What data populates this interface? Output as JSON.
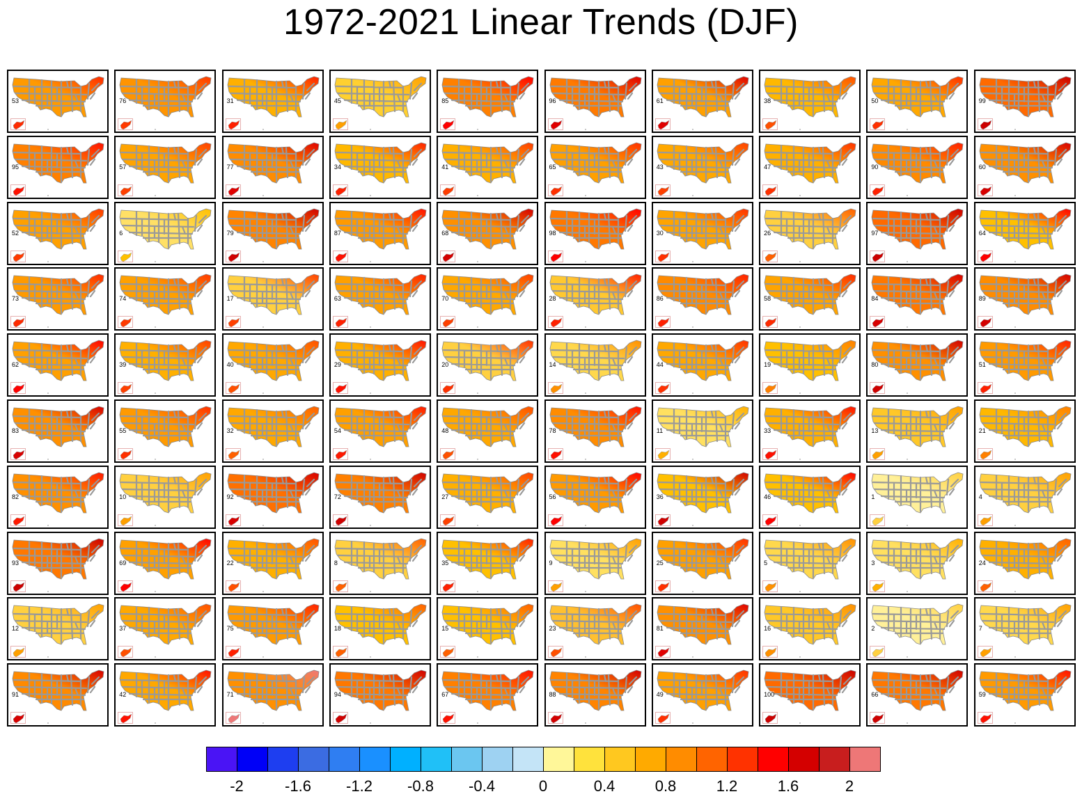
{
  "title": "1972-2021 Linear Trends (DJF)",
  "colorbar": {
    "colors": [
      "#4a14f5",
      "#0000f7",
      "#1e3ef0",
      "#3b6ce2",
      "#2f7ef2",
      "#1a90ff",
      "#00b0ff",
      "#20c0f7",
      "#6bc6f0",
      "#9ed2f2",
      "#c4e4f7",
      "#fff799",
      "#ffe23c",
      "#ffc81f",
      "#ffaa00",
      "#ff8c00",
      "#ff6400",
      "#ff3200",
      "#ff0000",
      "#d40000",
      "#c81e1e",
      "#ee7777"
    ],
    "tick_labels": [
      "-2",
      "-1.6",
      "-1.2",
      "-0.8",
      "-0.4",
      "0",
      "0.4",
      "0.8",
      "1.2",
      "1.6",
      "2"
    ]
  },
  "map_layers": {
    "state_line_color": "#999999",
    "state_line_width_units": "map"
  },
  "panels": [
    {
      "label": "53",
      "c": "#ff9a00",
      "hot": "#ff2a00"
    },
    {
      "label": "76",
      "c": "#ff9400",
      "hot": "#ff3a00"
    },
    {
      "label": "31",
      "c": "#ffb000",
      "hot": "#ff2000"
    },
    {
      "label": "45",
      "c": "#ffd030",
      "hot": "#ffa000"
    },
    {
      "label": "85",
      "c": "#ff8000",
      "hot": "#ff0000"
    },
    {
      "label": "96",
      "c": "#ff7a00",
      "hot": "#e00000"
    },
    {
      "label": "61",
      "c": "#ffa000",
      "hot": "#e00000"
    },
    {
      "label": "38",
      "c": "#ffb800",
      "hot": "#ff5000"
    },
    {
      "label": "50",
      "c": "#ffa800",
      "hot": "#ff3000"
    },
    {
      "label": "99",
      "c": "#ff6a00",
      "hot": "#cc0000"
    },
    {
      "label": "95",
      "c": "#ff8000",
      "hot": "#ff1000"
    },
    {
      "label": "57",
      "c": "#ffa400",
      "hot": "#ff4000"
    },
    {
      "label": "77",
      "c": "#ff8c00",
      "hot": "#e00000"
    },
    {
      "label": "34",
      "c": "#ffb800",
      "hot": "#ff2000"
    },
    {
      "label": "41",
      "c": "#ffb000",
      "hot": "#ff3c00"
    },
    {
      "label": "65",
      "c": "#ffa000",
      "hot": "#ff3000"
    },
    {
      "label": "43",
      "c": "#ffa800",
      "hot": "#ff4000"
    },
    {
      "label": "47",
      "c": "#ffb000",
      "hot": "#ff3000"
    },
    {
      "label": "90",
      "c": "#ff8a00",
      "hot": "#ff2000"
    },
    {
      "label": "60",
      "c": "#ff9000",
      "hot": "#d80000"
    },
    {
      "label": "52",
      "c": "#ffa000",
      "hot": "#ff3a00"
    },
    {
      "label": "6",
      "c": "#ffe066",
      "hot": "#ffc000"
    },
    {
      "label": "79",
      "c": "#ff8400",
      "hot": "#d00000"
    },
    {
      "label": "87",
      "c": "#ff9a00",
      "hot": "#ff1000"
    },
    {
      "label": "68",
      "c": "#ff9000",
      "hot": "#d40000"
    },
    {
      "label": "98",
      "c": "#ff7800",
      "hot": "#ff0000"
    },
    {
      "label": "30",
      "c": "#ffa400",
      "hot": "#ff3000"
    },
    {
      "label": "26",
      "c": "#ffd040",
      "hot": "#ff6000"
    },
    {
      "label": "97",
      "c": "#ff6a00",
      "hot": "#cc0000"
    },
    {
      "label": "64",
      "c": "#ffc000",
      "hot": "#ff0000"
    },
    {
      "label": "73",
      "c": "#ff9a00",
      "hot": "#ff2a00"
    },
    {
      "label": "74",
      "c": "#ffa000",
      "hot": "#ff3a00"
    },
    {
      "label": "17",
      "c": "#ffd040",
      "hot": "#ff4000"
    },
    {
      "label": "63",
      "c": "#ffa000",
      "hot": "#ff2000"
    },
    {
      "label": "70",
      "c": "#ffa800",
      "hot": "#ff4000"
    },
    {
      "label": "28",
      "c": "#ffc830",
      "hot": "#ff2000"
    },
    {
      "label": "86",
      "c": "#ff8a00",
      "hot": "#ff2000"
    },
    {
      "label": "58",
      "c": "#ffa400",
      "hot": "#ff2a00"
    },
    {
      "label": "84",
      "c": "#ff7800",
      "hot": "#d80000"
    },
    {
      "label": "89",
      "c": "#ff8c00",
      "hot": "#d40000"
    },
    {
      "label": "62",
      "c": "#ffa000",
      "hot": "#ff0000"
    },
    {
      "label": "39",
      "c": "#ffb000",
      "hot": "#ff4000"
    },
    {
      "label": "40",
      "c": "#ffa800",
      "hot": "#ff5000"
    },
    {
      "label": "29",
      "c": "#ffb000",
      "hot": "#ff1000"
    },
    {
      "label": "20",
      "c": "#ffd040",
      "hot": "#ff3000"
    },
    {
      "label": "14",
      "c": "#ffd84c",
      "hot": "#ff9000"
    },
    {
      "label": "44",
      "c": "#ffa800",
      "hot": "#ff3000"
    },
    {
      "label": "19",
      "c": "#ffc000",
      "hot": "#ff8000"
    },
    {
      "label": "80",
      "c": "#ff9000",
      "hot": "#d00000"
    },
    {
      "label": "51",
      "c": "#ff9a00",
      "hot": "#ff2000"
    },
    {
      "label": "83",
      "c": "#ff9000",
      "hot": "#d80000"
    },
    {
      "label": "55",
      "c": "#ff9a00",
      "hot": "#ff3000"
    },
    {
      "label": "32",
      "c": "#ffa800",
      "hot": "#ff6000"
    },
    {
      "label": "54",
      "c": "#ffa000",
      "hot": "#ff1800"
    },
    {
      "label": "48",
      "c": "#ffa800",
      "hot": "#ff5000"
    },
    {
      "label": "78",
      "c": "#ff8c00",
      "hot": "#ff1000"
    },
    {
      "label": "11",
      "c": "#ffe060",
      "hot": "#ffb000"
    },
    {
      "label": "33",
      "c": "#ffb000",
      "hot": "#ff1000"
    },
    {
      "label": "13",
      "c": "#ffc828",
      "hot": "#ffa000"
    },
    {
      "label": "21",
      "c": "#ffb800",
      "hot": "#ff8000"
    },
    {
      "label": "82",
      "c": "#ff9000",
      "hot": "#ff1800"
    },
    {
      "label": "10",
      "c": "#ffd040",
      "hot": "#ffa000"
    },
    {
      "label": "92",
      "c": "#ff7000",
      "hot": "#d80000"
    },
    {
      "label": "72",
      "c": "#ff8000",
      "hot": "#d00000"
    },
    {
      "label": "27",
      "c": "#ffb000",
      "hot": "#ff4000"
    },
    {
      "label": "56",
      "c": "#ff9a00",
      "hot": "#ff0000"
    },
    {
      "label": "36",
      "c": "#ffc000",
      "hot": "#d00000"
    },
    {
      "label": "46",
      "c": "#ffc000",
      "hot": "#ff0000"
    },
    {
      "label": "1",
      "c": "#fff099",
      "hot": "#ffd040"
    },
    {
      "label": "4",
      "c": "#ffd040",
      "hot": "#ffa000"
    },
    {
      "label": "93",
      "c": "#ff7800",
      "hot": "#cc0000"
    },
    {
      "label": "69",
      "c": "#ffa000",
      "hot": "#ff0000"
    },
    {
      "label": "22",
      "c": "#ffb000",
      "hot": "#ff5000"
    },
    {
      "label": "8",
      "c": "#ffd040",
      "hot": "#ff6000"
    },
    {
      "label": "35",
      "c": "#ffc000",
      "hot": "#ff2000"
    },
    {
      "label": "9",
      "c": "#ffe060",
      "hot": "#ffa000"
    },
    {
      "label": "25",
      "c": "#ffa000",
      "hot": "#ff3000"
    },
    {
      "label": "5",
      "c": "#ffd84c",
      "hot": "#ff9000"
    },
    {
      "label": "3",
      "c": "#ffe060",
      "hot": "#ffb000"
    },
    {
      "label": "24",
      "c": "#ffb000",
      "hot": "#ff6000"
    },
    {
      "label": "12",
      "c": "#ffd040",
      "hot": "#ffa000"
    },
    {
      "label": "37",
      "c": "#ffa800",
      "hot": "#ff5000"
    },
    {
      "label": "75",
      "c": "#ff9a00",
      "hot": "#ff2000"
    },
    {
      "label": "18",
      "c": "#ffc000",
      "hot": "#ff6000"
    },
    {
      "label": "15",
      "c": "#ffc000",
      "hot": "#ff6000"
    },
    {
      "label": "23",
      "c": "#ffc030",
      "hot": "#ff5000"
    },
    {
      "label": "81",
      "c": "#ff9000",
      "hot": "#e00000"
    },
    {
      "label": "16",
      "c": "#ffc828",
      "hot": "#ff9000"
    },
    {
      "label": "2",
      "c": "#fff099",
      "hot": "#ffd040"
    },
    {
      "label": "7",
      "c": "#ffd84c",
      "hot": "#ffa000"
    },
    {
      "label": "91",
      "c": "#ff8a00",
      "hot": "#d80000"
    },
    {
      "label": "42",
      "c": "#ffa800",
      "hot": "#ff1000"
    },
    {
      "label": "71",
      "c": "#ff9000",
      "hot": "#ee7777"
    },
    {
      "label": "94",
      "c": "#ff7800",
      "hot": "#d00000"
    },
    {
      "label": "67",
      "c": "#ff8000",
      "hot": "#ff1000"
    },
    {
      "label": "88",
      "c": "#ff8400",
      "hot": "#d40000"
    },
    {
      "label": "49",
      "c": "#ffa000",
      "hot": "#ff3000"
    },
    {
      "label": "100",
      "c": "#ff6a00",
      "hot": "#cc0000"
    },
    {
      "label": "66",
      "c": "#ff7800",
      "hot": "#d00000"
    },
    {
      "label": "59",
      "c": "#ff9a00",
      "hot": "#ff1000"
    }
  ]
}
